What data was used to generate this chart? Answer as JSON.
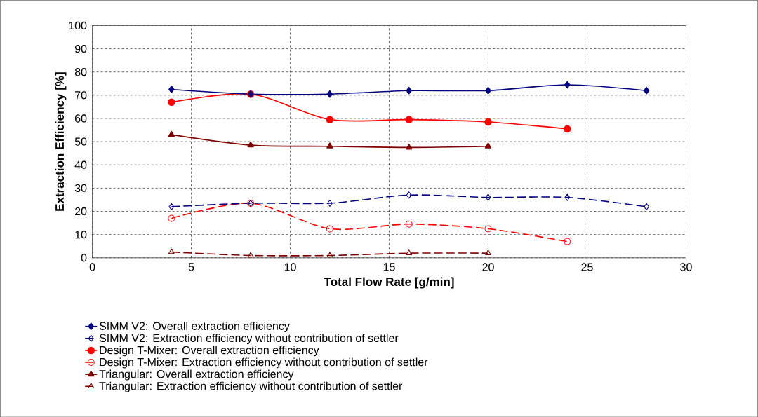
{
  "chart_data": {
    "type": "line",
    "xlabel": "Total Flow Rate [g/min]",
    "ylabel": "Extraction Efficiency [%]",
    "x": [
      4,
      8,
      12,
      16,
      20,
      24,
      28
    ],
    "series": [
      {
        "name": "SIMM V2: Overall extraction efficiency",
        "color": "#000080",
        "marker": "diamond",
        "line_style": "solid",
        "values": [
          72.5,
          70.5,
          70.5,
          72,
          72,
          74.5,
          72
        ]
      },
      {
        "name": "SIMM V2: Extraction efficiency without contribution of settler",
        "color": "#000080",
        "marker": "diamond",
        "line_style": "dashed",
        "values": [
          22,
          23.5,
          23.5,
          27,
          26,
          26,
          22
        ]
      },
      {
        "name": "Design T-Mixer: Overall extraction efficiency",
        "color": "#ff0000",
        "marker": "circle",
        "line_style": "solid",
        "values": [
          67,
          70.5,
          59.5,
          59.5,
          58.5,
          55.5,
          null
        ]
      },
      {
        "name": "Design T-Mixer: Extraction efficiency without contribution of settler",
        "color": "#ff0000",
        "marker": "circle",
        "line_style": "dashed",
        "values": [
          17,
          23.5,
          12.5,
          14.5,
          12.5,
          7,
          null
        ]
      },
      {
        "name": "Triangular: Overall extraction efficiency",
        "color": "#800000",
        "marker": "triangle",
        "line_style": "solid",
        "values": [
          53,
          48.5,
          48,
          47.5,
          48,
          null,
          null
        ]
      },
      {
        "name": "Triangular: Extraction efficiency without contribution of settler",
        "color": "#800000",
        "marker": "triangle",
        "line_style": "dashed",
        "values": [
          2.5,
          1,
          1,
          2,
          2,
          null,
          null
        ]
      }
    ],
    "xlim": [
      0,
      30
    ],
    "xticks": [
      0,
      5,
      10,
      15,
      20,
      25,
      30
    ],
    "ylim": [
      0,
      100
    ],
    "yticks": [
      0,
      10,
      20,
      30,
      40,
      50,
      60,
      70,
      80,
      90,
      100
    ],
    "grid": true,
    "legend": "bottom"
  }
}
